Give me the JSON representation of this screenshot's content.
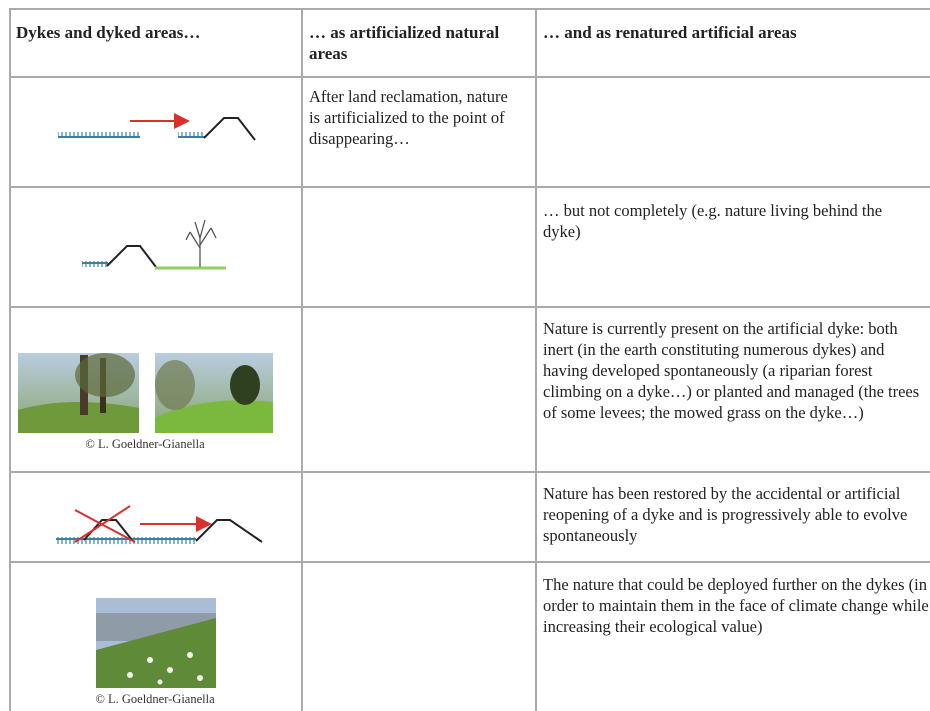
{
  "table": {
    "header": [
      "Dykes and dyked areas…",
      "… as artificialized natural areas",
      "… and as renatured artificial areas"
    ],
    "rows": [
      {
        "artificialized": "After land reclamation, nature is artificialized to the point of disappearing…"
      },
      {
        "renatured": "… but not completely (e.g. nature living behind the dyke)"
      },
      {
        "credit": "© L. Goeldner-Gianella",
        "renatured": "Nature is currently present on the artificial dyke: both inert (in the earth constituting numerous dykes) and having developed spontaneously (a riparian forest climbing on a dyke…) or planted and managed (the trees of some levees; the mowed grass on the dyke…)"
      },
      {
        "renatured": "Nature has been restored by the accidental or artificial reopening of a dyke and is progressively able to evolve spontaneously"
      },
      {
        "credit": "© L. Goeldner-Gianella",
        "renatured": "The nature that could be deployed further on the dykes (in order to maintain them in the face of climate change while increasing their ecological value)"
      }
    ]
  }
}
